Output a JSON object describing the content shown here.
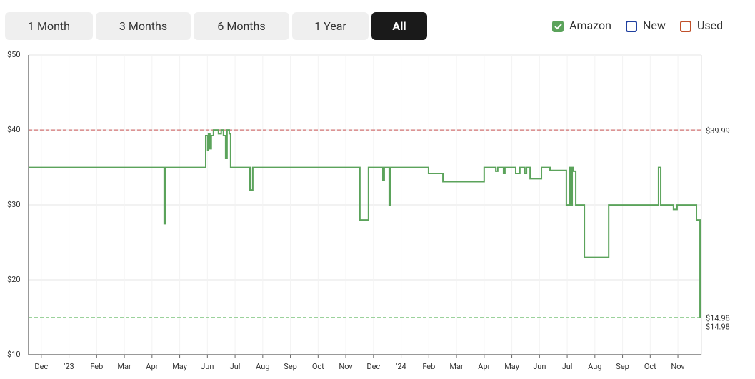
{
  "controls": {
    "ranges": [
      "1 Month",
      "3 Months",
      "6 Months",
      "1 Year",
      "All"
    ],
    "active": 4
  },
  "chart_data": {
    "type": "line",
    "step": true,
    "grid": true,
    "ylim": [
      10,
      50
    ],
    "yticks": [
      {
        "value": 10,
        "label": "$10"
      },
      {
        "value": 20,
        "label": "$20"
      },
      {
        "value": 30,
        "label": "$30"
      },
      {
        "value": 40,
        "label": "$40"
      },
      {
        "value": 50,
        "label": "$50"
      }
    ],
    "xlim": [
      -0.46,
      23.85
    ],
    "xticks": [
      {
        "value": 0,
        "label": "Dec"
      },
      {
        "value": 1,
        "label": "'23"
      },
      {
        "value": 2,
        "label": "Feb"
      },
      {
        "value": 3,
        "label": "Mar"
      },
      {
        "value": 4,
        "label": "Apr"
      },
      {
        "value": 5,
        "label": "May"
      },
      {
        "value": 6,
        "label": "Jun"
      },
      {
        "value": 7,
        "label": "Jul"
      },
      {
        "value": 8,
        "label": "Aug"
      },
      {
        "value": 9,
        "label": "Sep"
      },
      {
        "value": 10,
        "label": "Oct"
      },
      {
        "value": 11,
        "label": "Nov"
      },
      {
        "value": 12,
        "label": "Dec"
      },
      {
        "value": 13,
        "label": "'24"
      },
      {
        "value": 14,
        "label": "Feb"
      },
      {
        "value": 15,
        "label": "Mar"
      },
      {
        "value": 16,
        "label": "Apr"
      },
      {
        "value": 17,
        "label": "May"
      },
      {
        "value": 18,
        "label": "Jun"
      },
      {
        "value": 19,
        "label": "Jul"
      },
      {
        "value": 20,
        "label": "Aug"
      },
      {
        "value": 21,
        "label": "Sep"
      },
      {
        "value": 22,
        "label": "Oct"
      },
      {
        "value": 23,
        "label": "Nov"
      }
    ],
    "series": [
      {
        "name": "Amazon",
        "color": "#5ba35b",
        "visible": true,
        "x": [
          -0.46,
          4.44,
          4.49,
          5.94,
          6.01,
          6.04,
          6.09,
          6.14,
          6.22,
          6.4,
          6.5,
          6.58,
          6.66,
          6.71,
          6.79,
          6.84,
          7.54,
          7.64,
          11.51,
          11.82,
          12.34,
          12.39,
          12.57,
          12.6,
          13.99,
          14.51,
          16.0,
          16.42,
          16.49,
          16.7,
          16.75,
          17.14,
          17.29,
          17.47,
          17.53,
          17.66,
          18.07,
          18.38,
          18.97,
          19.08,
          19.13,
          19.18,
          19.23,
          19.31,
          19.62,
          20.5,
          22.3,
          22.38,
          22.84,
          22.97,
          23.67,
          23.8,
          23.85
        ],
        "values": [
          34.99,
          27.49,
          34.99,
          39.24,
          37.3,
          39.49,
          37.49,
          39.24,
          39.99,
          39.49,
          39.99,
          39.24,
          36.19,
          39.99,
          39.49,
          34.99,
          31.99,
          34.99,
          27.99,
          34.99,
          33.24,
          34.99,
          29.99,
          34.99,
          34.19,
          33.09,
          34.99,
          34.49,
          34.99,
          34.19,
          34.99,
          34.19,
          34.99,
          34.19,
          34.99,
          33.49,
          34.99,
          34.59,
          29.99,
          34.99,
          29.99,
          34.99,
          34.49,
          29.99,
          22.99,
          29.99,
          34.99,
          29.99,
          29.39,
          29.99,
          27.99,
          14.98,
          14.98
        ]
      },
      {
        "name": "New",
        "color": "#1f3f9f",
        "visible": false,
        "x": [],
        "values": []
      },
      {
        "name": "Used",
        "color": "#c0502a",
        "visible": false,
        "x": [],
        "values": []
      }
    ],
    "reference_lines": [
      {
        "value": 39.99,
        "label": "$39.99",
        "color": "#d07070"
      },
      {
        "value": 14.98,
        "label": "$14.98",
        "color": "#8fcc8f"
      }
    ],
    "end_label": {
      "value": 14.98,
      "label": "$14.98",
      "color": "#5ba35b"
    }
  }
}
